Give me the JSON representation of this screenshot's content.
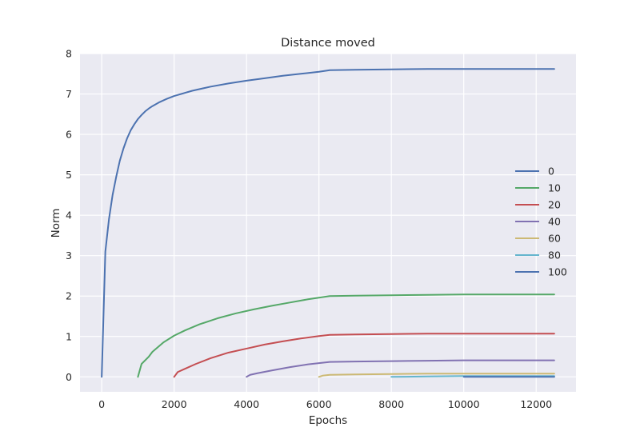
{
  "chart_data": {
    "type": "line",
    "title": "Distance moved",
    "xlabel": "Epochs",
    "ylabel": "Norm",
    "xlim": [
      -600,
      13100
    ],
    "ylim": [
      -0.37,
      8.0
    ],
    "xticks": [
      0,
      2000,
      4000,
      6000,
      8000,
      10000,
      12000
    ],
    "yticks": [
      0,
      1,
      2,
      3,
      4,
      5,
      6,
      7,
      8
    ],
    "grid": true,
    "legend_position": "right",
    "background": "#EAEAF2",
    "series": [
      {
        "name": "0",
        "color": "#4C72B0",
        "x": [
          0,
          100,
          200,
          300,
          400,
          500,
          600,
          700,
          800,
          900,
          1000,
          1100,
          1200,
          1300,
          1400,
          1600,
          1800,
          2000,
          2500,
          3000,
          3500,
          4000,
          4500,
          5000,
          5500,
          6000,
          6300,
          7000,
          8000,
          9000,
          10000,
          11000,
          12000,
          12500
        ],
        "y": [
          0,
          3.1,
          3.9,
          4.5,
          4.95,
          5.35,
          5.65,
          5.9,
          6.1,
          6.25,
          6.38,
          6.48,
          6.57,
          6.64,
          6.7,
          6.8,
          6.88,
          6.95,
          7.08,
          7.18,
          7.26,
          7.33,
          7.39,
          7.45,
          7.5,
          7.55,
          7.59,
          7.6,
          7.61,
          7.62,
          7.62,
          7.62,
          7.62,
          7.62
        ]
      },
      {
        "name": "10",
        "color": "#55A868",
        "x": [
          1000,
          1100,
          1300,
          1400,
          1700,
          2000,
          2300,
          2700,
          3200,
          3700,
          4200,
          4700,
          5200,
          5700,
          6300,
          7000,
          8000,
          9000,
          10000,
          11000,
          12500
        ],
        "y": [
          0,
          0.32,
          0.5,
          0.62,
          0.85,
          1.02,
          1.15,
          1.3,
          1.45,
          1.57,
          1.67,
          1.76,
          1.84,
          1.92,
          2.0,
          2.01,
          2.02,
          2.03,
          2.04,
          2.04,
          2.04
        ]
      },
      {
        "name": "20",
        "color": "#C44E52",
        "x": [
          2000,
          2100,
          2300,
          2600,
          3000,
          3500,
          4000,
          4500,
          5000,
          5500,
          6000,
          6300,
          7000,
          8000,
          9000,
          10000,
          11000,
          12500
        ],
        "y": [
          0,
          0.12,
          0.2,
          0.32,
          0.46,
          0.6,
          0.7,
          0.8,
          0.88,
          0.95,
          1.01,
          1.04,
          1.05,
          1.06,
          1.07,
          1.07,
          1.07,
          1.07
        ]
      },
      {
        "name": "40",
        "color": "#8172B2",
        "x": [
          4000,
          4100,
          4300,
          4700,
          5200,
          5700,
          6300,
          7000,
          8000,
          9000,
          10000,
          11000,
          12500
        ],
        "y": [
          0,
          0.05,
          0.09,
          0.16,
          0.24,
          0.31,
          0.37,
          0.38,
          0.39,
          0.4,
          0.41,
          0.41,
          0.41
        ]
      },
      {
        "name": "60",
        "color": "#CCB974",
        "x": [
          6000,
          6100,
          6300,
          7000,
          8000,
          9000,
          10000,
          11000,
          12500
        ],
        "y": [
          0,
          0.03,
          0.05,
          0.06,
          0.07,
          0.08,
          0.08,
          0.08,
          0.08
        ]
      },
      {
        "name": "80",
        "color": "#64B5CD",
        "x": [
          8000,
          9000,
          10000,
          11000,
          12500
        ],
        "y": [
          0,
          0.01,
          0.02,
          0.02,
          0.02
        ]
      },
      {
        "name": "100",
        "color": "#4C72B0",
        "x": [
          10000,
          11000,
          12500
        ],
        "y": [
          0,
          0.0,
          0.0
        ]
      }
    ]
  }
}
